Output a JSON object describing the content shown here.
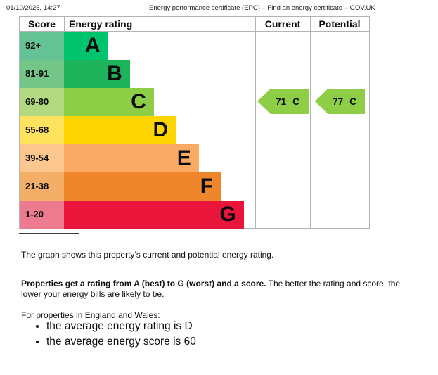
{
  "print_header": {
    "datetime": "01/10/2025, 14:27",
    "page_title": "Energy performance certificate (EPC) – Find an energy certificate – GOV.UK"
  },
  "chart": {
    "headers": {
      "score": "Score",
      "rating": "Energy rating",
      "current": "Current",
      "potential": "Potential"
    },
    "bands": [
      {
        "score_range": "92+",
        "letter": "A",
        "bar_color": "#00c36e",
        "score_cell_color": "#64c294",
        "width_pct": 23
      },
      {
        "score_range": "81-91",
        "letter": "B",
        "bar_color": "#1eb45b",
        "score_cell_color": "#73c687",
        "width_pct": 34.5
      },
      {
        "score_range": "69-80",
        "letter": "C",
        "bar_color": "#8dce46",
        "score_cell_color": "#b2d980",
        "width_pct": 47
      },
      {
        "score_range": "55-68",
        "letter": "D",
        "bar_color": "#ffd500",
        "score_cell_color": "#ffe25e",
        "width_pct": 58.5
      },
      {
        "score_range": "39-54",
        "letter": "E",
        "bar_color": "#fbaa65",
        "score_cell_color": "#fbc78f",
        "width_pct": 70.5
      },
      {
        "score_range": "21-38",
        "letter": "F",
        "bar_color": "#f0862b",
        "score_cell_color": "#f3ae68",
        "width_pct": 82
      },
      {
        "score_range": "1-20",
        "letter": "G",
        "bar_color": "#e9153b",
        "score_cell_color": "#ec7b90",
        "width_pct": 94
      }
    ],
    "current": {
      "value": "71",
      "letter": "C",
      "arrow_color": "#8dce46"
    },
    "potential": {
      "value": "77",
      "letter": "C",
      "arrow_color": "#8dce46"
    }
  },
  "chart_data": {
    "type": "bar",
    "title": "Energy rating",
    "columns": [
      "Score",
      "Energy rating",
      "Current",
      "Potential"
    ],
    "categories": [
      "A",
      "B",
      "C",
      "D",
      "E",
      "F",
      "G"
    ],
    "score_ranges": [
      "92+",
      "81-91",
      "69-80",
      "55-68",
      "39-54",
      "21-38",
      "1-20"
    ],
    "bar_widths_pct_of_column": [
      23,
      34.5,
      47,
      58.5,
      70.5,
      82,
      94
    ],
    "band_colors": [
      "#00c36e",
      "#1eb45b",
      "#8dce46",
      "#ffd500",
      "#fbaa65",
      "#f0862b",
      "#e9153b"
    ],
    "score_cell_colors": [
      "#64c294",
      "#73c687",
      "#b2d980",
      "#ffe25e",
      "#fbc78f",
      "#f3ae68",
      "#ec7b90"
    ],
    "current_rating": {
      "score": 71,
      "band": "C"
    },
    "potential_rating": {
      "score": 77,
      "band": "C"
    },
    "arrow_color": "#8dce46",
    "grid": false,
    "legend_position": "none"
  },
  "description": {
    "p1": "The graph shows this property’s current and potential energy rating.",
    "p2_bold": "Properties get a rating from A (best) to G (worst) and a score.",
    "p2_rest": " The better the rating and score, the lower your energy bills are likely to be.",
    "p3": "For properties in England and Wales:",
    "bullets": [
      "the average energy rating is D",
      "the average energy score is 60"
    ]
  }
}
